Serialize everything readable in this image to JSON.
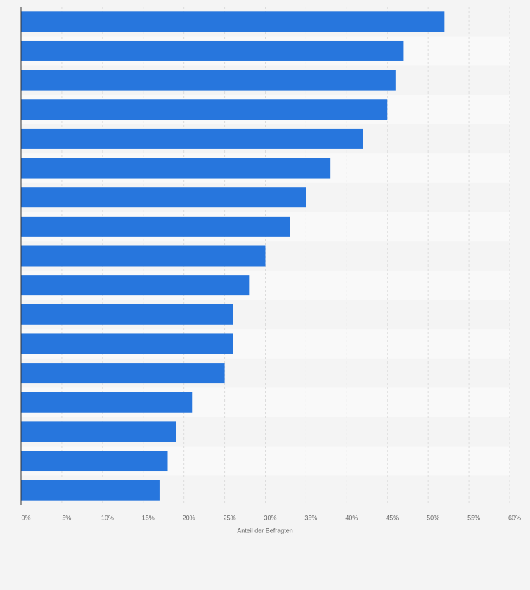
{
  "chart_data": {
    "type": "bar",
    "orientation": "horizontal",
    "x_axis_label": "Anteil der Befragten",
    "categories": [
      null,
      null,
      null,
      null,
      null,
      null,
      null,
      null,
      null,
      null,
      null,
      null,
      null,
      null,
      null,
      null,
      null
    ],
    "values": [
      52,
      47,
      46,
      45,
      42,
      38,
      35,
      33,
      30,
      28,
      26,
      26,
      25,
      21,
      19,
      18,
      17
    ],
    "color": "#2776dd",
    "xlim": [
      0,
      60
    ],
    "xticks": [
      {
        "value": 0,
        "label": "0%"
      },
      {
        "value": 5,
        "label": "5%"
      },
      {
        "value": 10,
        "label": "10%"
      },
      {
        "value": 15,
        "label": "15%"
      },
      {
        "value": 20,
        "label": "20%"
      },
      {
        "value": 25,
        "label": "25%"
      },
      {
        "value": 30,
        "label": "30%"
      },
      {
        "value": 35,
        "label": "35%"
      },
      {
        "value": 40,
        "label": "40%"
      },
      {
        "value": 45,
        "label": "45%"
      },
      {
        "value": 50,
        "label": "50%"
      },
      {
        "value": 55,
        "label": "55%"
      },
      {
        "value": 60,
        "label": "60%"
      }
    ],
    "grid": true
  }
}
